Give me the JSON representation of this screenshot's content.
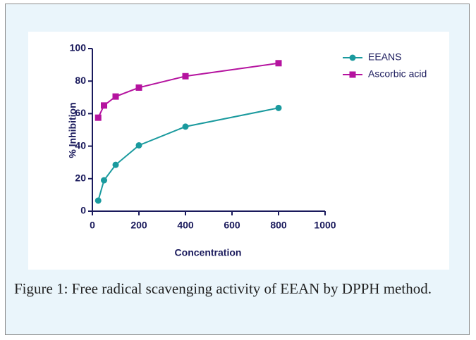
{
  "chart_data": {
    "type": "line",
    "xlabel": "Concentration",
    "ylabel": "% Inhibition",
    "x": [
      25,
      50,
      100,
      200,
      400,
      800
    ],
    "series": [
      {
        "name": "EEANS",
        "color": "#1a9a9e",
        "marker": "circle",
        "values": [
          6.5,
          19,
          28.5,
          40.5,
          52,
          63.5
        ]
      },
      {
        "name": "Ascorbic acid",
        "color": "#b5139f",
        "marker": "square",
        "values": [
          57.5,
          65,
          70.5,
          76,
          83,
          91
        ]
      }
    ],
    "xlim": [
      0,
      1000
    ],
    "xticks": [
      0,
      200,
      400,
      600,
      800,
      1000
    ],
    "ylim": [
      0,
      100
    ],
    "yticks": [
      0,
      20,
      40,
      60,
      80,
      100
    ],
    "legend": "upper right",
    "caption": "Figure 1: Free radical scavenging activity of EEAN by DPPH method."
  }
}
